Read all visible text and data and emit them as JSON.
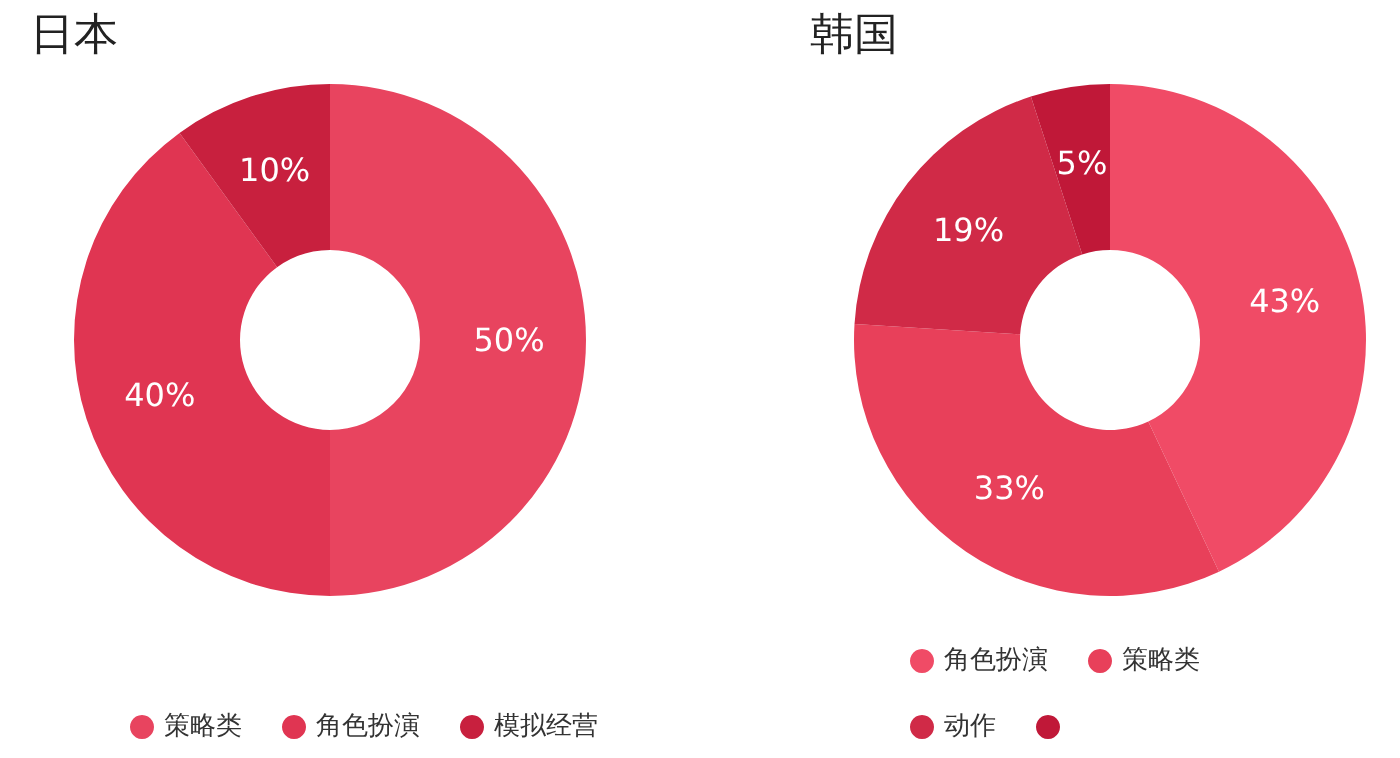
{
  "chart_data": [
    {
      "type": "donut",
      "title": "日本",
      "categories": [
        "策略类",
        "角色扮演",
        "模拟经营"
      ],
      "values": [
        50,
        40,
        10
      ],
      "value_labels": [
        "50%",
        "40%",
        "10%"
      ],
      "colors": [
        "#e8445f",
        "#e03552",
        "#c8203e"
      ],
      "legend": "bottom"
    },
    {
      "type": "donut",
      "title": "韩国",
      "categories": [
        "角色扮演",
        "策略类",
        "动作",
        null
      ],
      "values": [
        43,
        33,
        19,
        5
      ],
      "value_labels": [
        "43%",
        "33%",
        "19%",
        "5%"
      ],
      "colors": [
        "#f04b66",
        "#e8405a",
        "#d02a47",
        "#c01838"
      ],
      "legend": "bottom"
    }
  ]
}
